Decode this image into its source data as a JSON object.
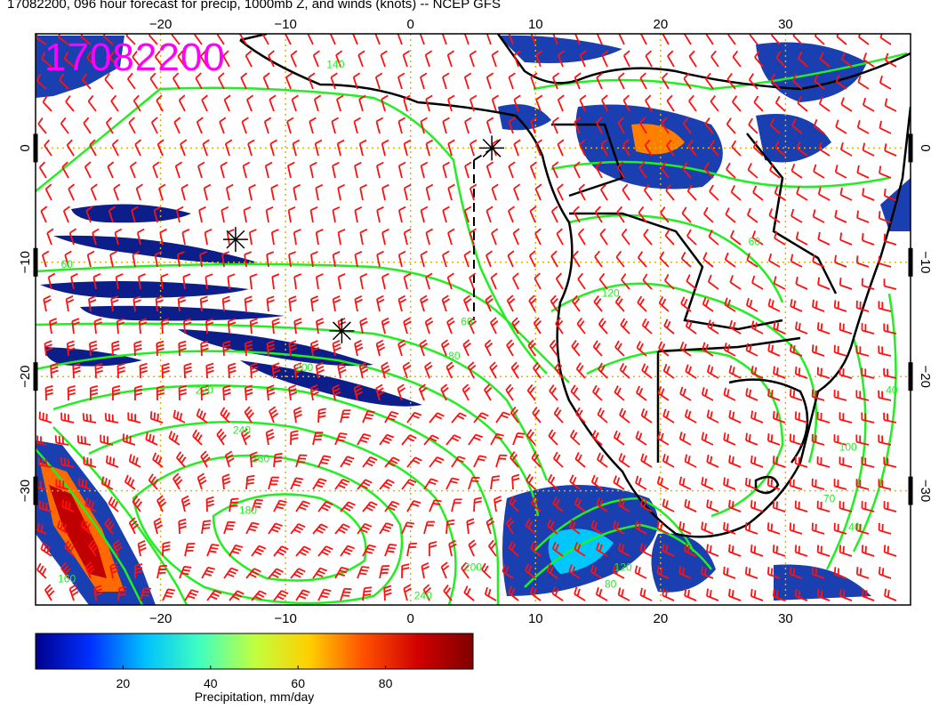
{
  "title": "17082200, 096 hour forecast for precip, 1000mb Z, and winds (knots) -- NCEP GFS",
  "stamp": "17082200",
  "map": {
    "lon_range": [
      -30,
      40
    ],
    "lat_range": [
      -40,
      10
    ],
    "lon_ticks": [
      {
        "value": -20,
        "label": "−20"
      },
      {
        "value": -10,
        "label": "−10"
      },
      {
        "value": 0,
        "label": "0"
      },
      {
        "value": 10,
        "label": "10"
      },
      {
        "value": 20,
        "label": "20"
      },
      {
        "value": 30,
        "label": "30"
      }
    ],
    "lat_ticks": [
      {
        "value": 0,
        "label": "0"
      },
      {
        "value": -10,
        "label": "−10"
      },
      {
        "value": -20,
        "label": "−20"
      },
      {
        "value": -30,
        "label": "−30"
      }
    ],
    "gridlines": true,
    "colors": {
      "contour": "#22ee22",
      "wind_barb": "#ff1010",
      "grid": "#e0b400",
      "coast": "#000000",
      "label": "#ff00ff"
    }
  },
  "contour_labels": [
    {
      "text": "140",
      "lon": -6,
      "lat": 7
    },
    {
      "text": "60",
      "lon": -27.5,
      "lat": -10.5
    },
    {
      "text": "200",
      "lon": -8.5,
      "lat": -19.5
    },
    {
      "text": "220",
      "lon": -16.5,
      "lat": -21.5
    },
    {
      "text": "240",
      "lon": -13.5,
      "lat": -25
    },
    {
      "text": "260",
      "lon": -12,
      "lat": -27.5
    },
    {
      "text": "180",
      "lon": -13,
      "lat": -32
    },
    {
      "text": "60",
      "lon": 4.5,
      "lat": -15.5
    },
    {
      "text": "80",
      "lon": 3.5,
      "lat": -18.5
    },
    {
      "text": "120",
      "lon": 16,
      "lat": -13
    },
    {
      "text": "60",
      "lon": 27.5,
      "lat": -8.5
    },
    {
      "text": "40",
      "lon": 38.5,
      "lat": -21.5
    },
    {
      "text": "100",
      "lon": 35,
      "lat": -26.5
    },
    {
      "text": "70",
      "lon": 33.5,
      "lat": -31
    },
    {
      "text": "40",
      "lon": 35.5,
      "lat": -33.5
    },
    {
      "text": "160",
      "lon": -27.5,
      "lat": -38
    },
    {
      "text": "240",
      "lon": 1,
      "lat": -39.5
    },
    {
      "text": "200",
      "lon": 5,
      "lat": -37
    },
    {
      "text": "120",
      "lon": 17,
      "lat": -37
    },
    {
      "text": "80",
      "lon": 16,
      "lat": -38.5
    }
  ],
  "markers": [
    {
      "name": "marker-1",
      "lon": -14,
      "lat": -8
    },
    {
      "name": "marker-2",
      "lon": -5.5,
      "lat": -16
    },
    {
      "name": "marker-3",
      "lon": 6.5,
      "lat": 0
    }
  ],
  "colorbar": {
    "title": "Precipitation, mm/day",
    "min": 0,
    "max": 100,
    "ticks": [
      20,
      40,
      60,
      80
    ],
    "tick_labels": [
      "20",
      "40",
      "60",
      "80"
    ],
    "stops": [
      "#00008f",
      "#0030ff",
      "#00c0ff",
      "#40ffc0",
      "#c0ff40",
      "#ffd000",
      "#ff5000",
      "#d00000",
      "#800000"
    ]
  }
}
